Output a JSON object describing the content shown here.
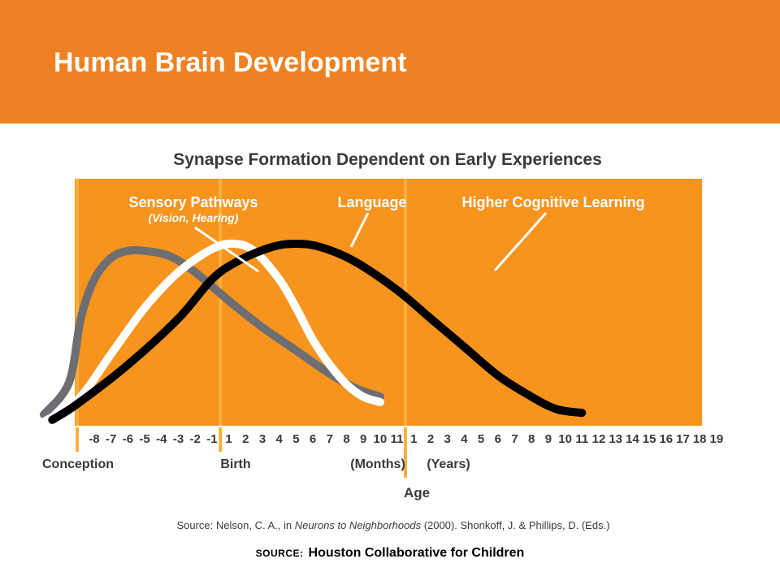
{
  "slide": {
    "title": "Human Brain Development",
    "source_prefix": "SOURCE:",
    "source_text": "Houston Collaborative for Children"
  },
  "colors": {
    "header": "#ee8122",
    "plot_bg": "#f7941d",
    "sensory": "#6d6e71",
    "language": "#ffffff",
    "cognitive": "#000000",
    "divider": "#fbb040"
  },
  "chart_data": {
    "type": "line",
    "title": "Synapse Formation Dependent on Early Experiences",
    "xlabel": "Age",
    "x_ticks": [
      "-8",
      "-7",
      "-6",
      "-5",
      "-4",
      "-3",
      "-2",
      "-1",
      "1",
      "2",
      "3",
      "4",
      "5",
      "6",
      "7",
      "8",
      "9",
      "10",
      "11",
      "1",
      "2",
      "3",
      "4",
      "5",
      "6",
      "7",
      "8",
      "9",
      "10",
      "11",
      "12",
      "13",
      "14",
      "15",
      "16",
      "17",
      "18",
      "19"
    ],
    "x_ticks_months_start_index": 8,
    "x_ticks_years_start_index": 19,
    "axis_markers": {
      "conception": "Conception",
      "birth": "Birth",
      "months": "(Months)",
      "years": "(Years)"
    },
    "ylim": [
      0,
      100
    ],
    "series": [
      {
        "name": "Sensory Pathways",
        "sublabel": "(Vision, Hearing)",
        "color": "#6d6e71",
        "points": [
          [
            -3,
            4
          ],
          [
            -1.5,
            22
          ],
          [
            -0.8,
            58
          ],
          [
            0,
            80
          ],
          [
            1,
            92
          ],
          [
            2,
            96
          ],
          [
            3,
            96
          ],
          [
            4.5,
            93
          ],
          [
            6,
            84
          ],
          [
            8,
            68
          ],
          [
            10,
            53
          ],
          [
            12,
            40
          ],
          [
            14,
            27
          ],
          [
            15.5,
            19
          ],
          [
            17,
            14
          ]
        ]
      },
      {
        "name": "Language",
        "color": "#ffffff",
        "points": [
          [
            -3,
            0
          ],
          [
            -1,
            12
          ],
          [
            1,
            38
          ],
          [
            3,
            64
          ],
          [
            5,
            84
          ],
          [
            7,
            97
          ],
          [
            8.3,
            100
          ],
          [
            9.5,
            96
          ],
          [
            11,
            80
          ],
          [
            12,
            64
          ],
          [
            13,
            46
          ],
          [
            14,
            32
          ],
          [
            15,
            21
          ],
          [
            16,
            14
          ],
          [
            17,
            11
          ]
        ]
      },
      {
        "name": "Higher Cognitive Learning",
        "color": "#000000",
        "points": [
          [
            -2.5,
            1
          ],
          [
            -1,
            10
          ],
          [
            2,
            32
          ],
          [
            5,
            58
          ],
          [
            7,
            80
          ],
          [
            8.5,
            90
          ],
          [
            10.5,
            98
          ],
          [
            12,
            100
          ],
          [
            13.5,
            98
          ],
          [
            15.5,
            90
          ],
          [
            18,
            74
          ],
          [
            20,
            58
          ],
          [
            22,
            42
          ],
          [
            24,
            26
          ],
          [
            26,
            14
          ],
          [
            27.5,
            7
          ],
          [
            29,
            5
          ]
        ]
      }
    ],
    "citation_prefix": "Source: Nelson, C. A., in ",
    "citation_italic": "Neurons to Neighborhoods",
    "citation_suffix": " (2000). Shonkoff, J. & Phillips, D. (Eds.)",
    "legend": "labels-on-chart",
    "grid": false
  }
}
